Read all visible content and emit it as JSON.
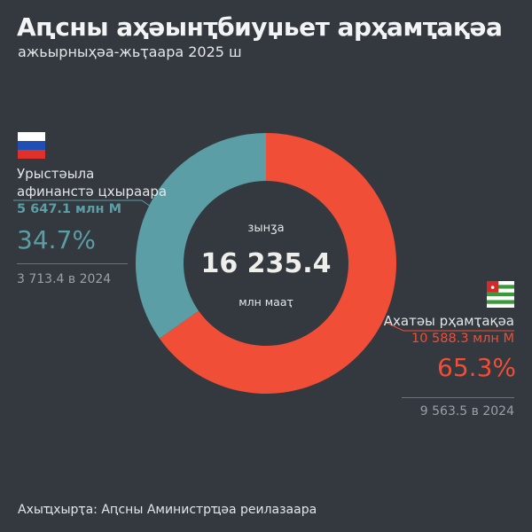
{
  "header": {
    "title": "Аԥсны аҳәынҭбиуџьет арҳамҭақәа",
    "subtitle": "ажьырныҳәа-жьҭаара 2025 ш"
  },
  "chart_data": {
    "type": "pie",
    "variant": "donut",
    "total_label": "зынӡа",
    "total_value": "16 235.4",
    "total_unit": "млн мааҭ",
    "slices": [
      {
        "name": "Урыстәыла афинанстә цхыраара",
        "value": 5647.1,
        "value_label": "5 647.1 млн М",
        "percent": 34.7,
        "percent_label": "34.7%",
        "previous_label": "3 713.4 в 2024",
        "color": "#5b9ea6",
        "flag": "russia-flag"
      },
      {
        "name": "Ахатәы рҳамҭақәа",
        "value": 10588.3,
        "value_label": "10 588.3 млн М",
        "percent": 65.3,
        "percent_label": "65.3%",
        "previous_label": "9 563.5 в 2024",
        "color": "#f04e36",
        "flag": "abkhazia-flag"
      }
    ]
  },
  "footer": {
    "source": "Ахыҵхырҭа: Аԥсны Аминистрҵәа реилазаара"
  }
}
